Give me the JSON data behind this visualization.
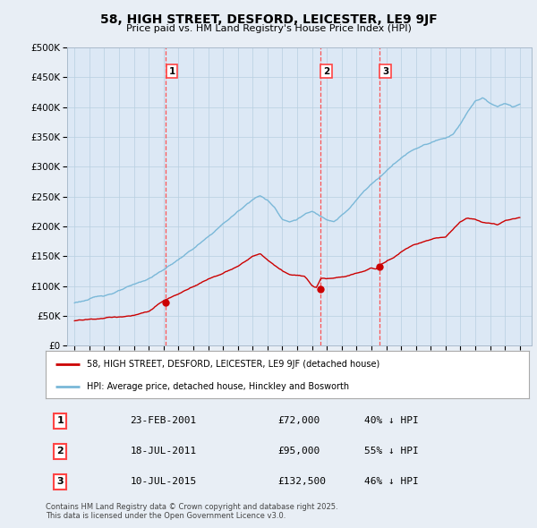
{
  "title1": "58, HIGH STREET, DESFORD, LEICESTER, LE9 9JF",
  "title2": "Price paid vs. HM Land Registry's House Price Index (HPI)",
  "background_color": "#e8eef5",
  "plot_bg_color": "#dce8f5",
  "hpi_color": "#7ab8d8",
  "price_color": "#cc0000",
  "vline_color": "#ff4444",
  "transactions": [
    {
      "num": 1,
      "date": "23-FEB-2001",
      "price": 72000,
      "hpi_diff": "40% ↓ HPI",
      "year": 2001.14
    },
    {
      "num": 2,
      "date": "18-JUL-2011",
      "price": 95000,
      "hpi_diff": "55% ↓ HPI",
      "year": 2011.54
    },
    {
      "num": 3,
      "date": "10-JUL-2015",
      "price": 132500,
      "hpi_diff": "46% ↓ HPI",
      "year": 2015.52
    }
  ],
  "legend_label_price": "58, HIGH STREET, DESFORD, LEICESTER, LE9 9JF (detached house)",
  "legend_label_hpi": "HPI: Average price, detached house, Hinckley and Bosworth",
  "footer": "Contains HM Land Registry data © Crown copyright and database right 2025.\nThis data is licensed under the Open Government Licence v3.0.",
  "ylim": [
    0,
    500000
  ],
  "yticks": [
    0,
    50000,
    100000,
    150000,
    200000,
    250000,
    300000,
    350000,
    400000,
    450000,
    500000
  ],
  "xlim_start": 1994.5,
  "xlim_end": 2025.8,
  "hpi_anchors_x": [
    1995,
    1996,
    1997,
    1998,
    1999,
    2000,
    2001,
    2002,
    2003,
    2004,
    2005,
    2006,
    2007,
    2007.5,
    2008,
    2008.5,
    2009,
    2009.5,
    2010,
    2010.5,
    2011,
    2011.5,
    2012,
    2012.5,
    2013,
    2013.5,
    2014,
    2014.5,
    2015,
    2015.5,
    2016,
    2016.5,
    2017,
    2017.5,
    2018,
    2018.5,
    2019,
    2019.5,
    2020,
    2020.5,
    2021,
    2021.5,
    2022,
    2022.5,
    2023,
    2023.5,
    2024,
    2024.5,
    2025
  ],
  "hpi_anchors_y": [
    72000,
    78000,
    84000,
    92000,
    100000,
    110000,
    125000,
    142000,
    160000,
    178000,
    200000,
    220000,
    242000,
    248000,
    240000,
    228000,
    210000,
    205000,
    210000,
    218000,
    222000,
    215000,
    210000,
    208000,
    218000,
    228000,
    242000,
    258000,
    270000,
    280000,
    292000,
    305000,
    315000,
    325000,
    332000,
    338000,
    342000,
    348000,
    350000,
    358000,
    375000,
    395000,
    412000,
    418000,
    408000,
    400000,
    408000,
    400000,
    405000
  ],
  "price_anchors_x": [
    1995,
    1996,
    1997,
    1998,
    1999,
    2000,
    2001,
    2002,
    2003,
    2004,
    2005,
    2006,
    2007,
    2007.5,
    2008,
    2008.5,
    2009,
    2009.5,
    2010,
    2010.5,
    2011,
    2011.3,
    2011.6,
    2012,
    2012.5,
    2013,
    2013.5,
    2014,
    2014.5,
    2015,
    2015.3,
    2015.6,
    2016,
    2016.5,
    2017,
    2017.5,
    2018,
    2018.5,
    2019,
    2019.5,
    2020,
    2020.5,
    2021,
    2021.5,
    2022,
    2022.5,
    2023,
    2023.5,
    2024,
    2024.5,
    2025
  ],
  "price_anchors_y": [
    42000,
    44000,
    46000,
    48000,
    50000,
    55000,
    72000,
    82000,
    95000,
    108000,
    118000,
    128000,
    145000,
    148000,
    138000,
    128000,
    118000,
    112000,
    110000,
    108000,
    95000,
    92000,
    108000,
    108000,
    110000,
    112000,
    115000,
    118000,
    122000,
    128000,
    125000,
    132500,
    138000,
    145000,
    155000,
    162000,
    168000,
    172000,
    175000,
    178000,
    180000,
    192000,
    205000,
    212000,
    210000,
    205000,
    205000,
    202000,
    208000,
    212000,
    215000
  ]
}
